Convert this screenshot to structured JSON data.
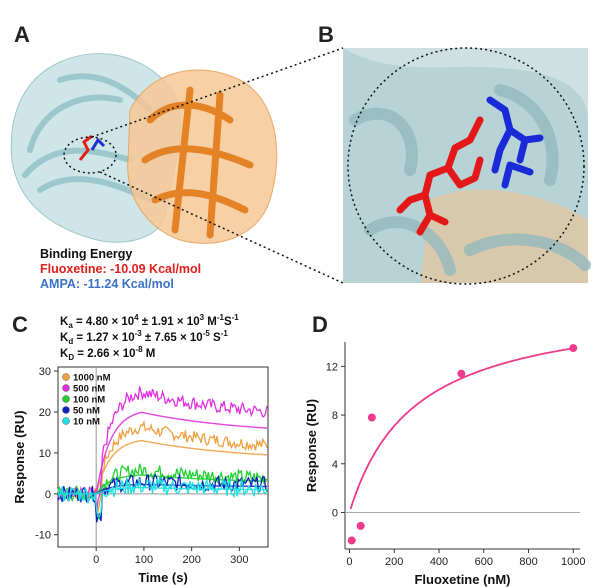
{
  "panels": {
    "a": "A",
    "b": "B",
    "c": "C",
    "d": "D"
  },
  "binding": {
    "title": "Binding Energy",
    "fluoxetine": "Fluoxetine: -10.09 Kcal/mol",
    "ampa": "AMPA: -11.24 Kcal/mol",
    "colors": {
      "fluoxetine": "#e0201b",
      "ampa": "#3a72c6",
      "protein_a": "#b8d8dc",
      "protein_b": "#f0a050"
    }
  },
  "kinetics": {
    "ka": {
      "sym": "K",
      "sub": "a",
      "eq": " = 4.80 × 10",
      "e1": "4",
      "pm": " ± 1.91 × 10",
      "e2": "3",
      "unit": " M",
      "u1": "-1",
      "unit2": "S",
      "u2": "-1"
    },
    "kd": {
      "sym": "K",
      "sub": "d",
      "eq": " = 1.27 × 10",
      "e1": "-3",
      "pm": " ± 7.65 × 10",
      "e2": "-5",
      "unit": " S",
      "u1": "-1"
    },
    "KD": {
      "sym": "K",
      "sub": "D",
      "eq": " = 2.66 × 10",
      "e1": "-8",
      "unit": " M"
    }
  },
  "chart_data": [
    {
      "type": "line",
      "xlabel": "Time (s)",
      "ylabel": "Response (RU)",
      "xlim": [
        -80,
        360
      ],
      "ylim": [
        -13,
        31
      ],
      "xticks": [
        0,
        100,
        200,
        300
      ],
      "yticks": [
        -10,
        0,
        10,
        20,
        30
      ],
      "legend_position": "top-left",
      "series": [
        {
          "name": "1000 nM",
          "color": "#f0a040",
          "plateau": 17,
          "end": 10
        },
        {
          "name": "500 nM",
          "color": "#e030e0",
          "plateau": 26,
          "end": 18
        },
        {
          "name": "100 nM",
          "color": "#20d030",
          "plateau": 6,
          "end": 3
        },
        {
          "name": "50 nM",
          "color": "#1020c0",
          "plateau": 3,
          "end": 2
        },
        {
          "name": "10 nM",
          "color": "#20e0e0",
          "plateau": 2,
          "end": 1
        }
      ]
    },
    {
      "type": "scatter",
      "xlabel": "Fluoxetine (nM)",
      "ylabel": "Response (RU)",
      "xlim": [
        -20,
        1030
      ],
      "ylim": [
        -3,
        14
      ],
      "xticks": [
        0,
        200,
        400,
        600,
        800,
        1000
      ],
      "yticks": [
        0,
        4,
        8,
        12
      ],
      "points": [
        {
          "x": 10,
          "y": -2.3
        },
        {
          "x": 50,
          "y": -1.1
        },
        {
          "x": 100,
          "y": 7.8
        },
        {
          "x": 500,
          "y": 11.4
        },
        {
          "x": 1000,
          "y": 13.5
        }
      ],
      "fit": {
        "model": "hyperbola",
        "rmax": 17.4,
        "kd": 290
      },
      "color": "#ee3a8c"
    }
  ]
}
